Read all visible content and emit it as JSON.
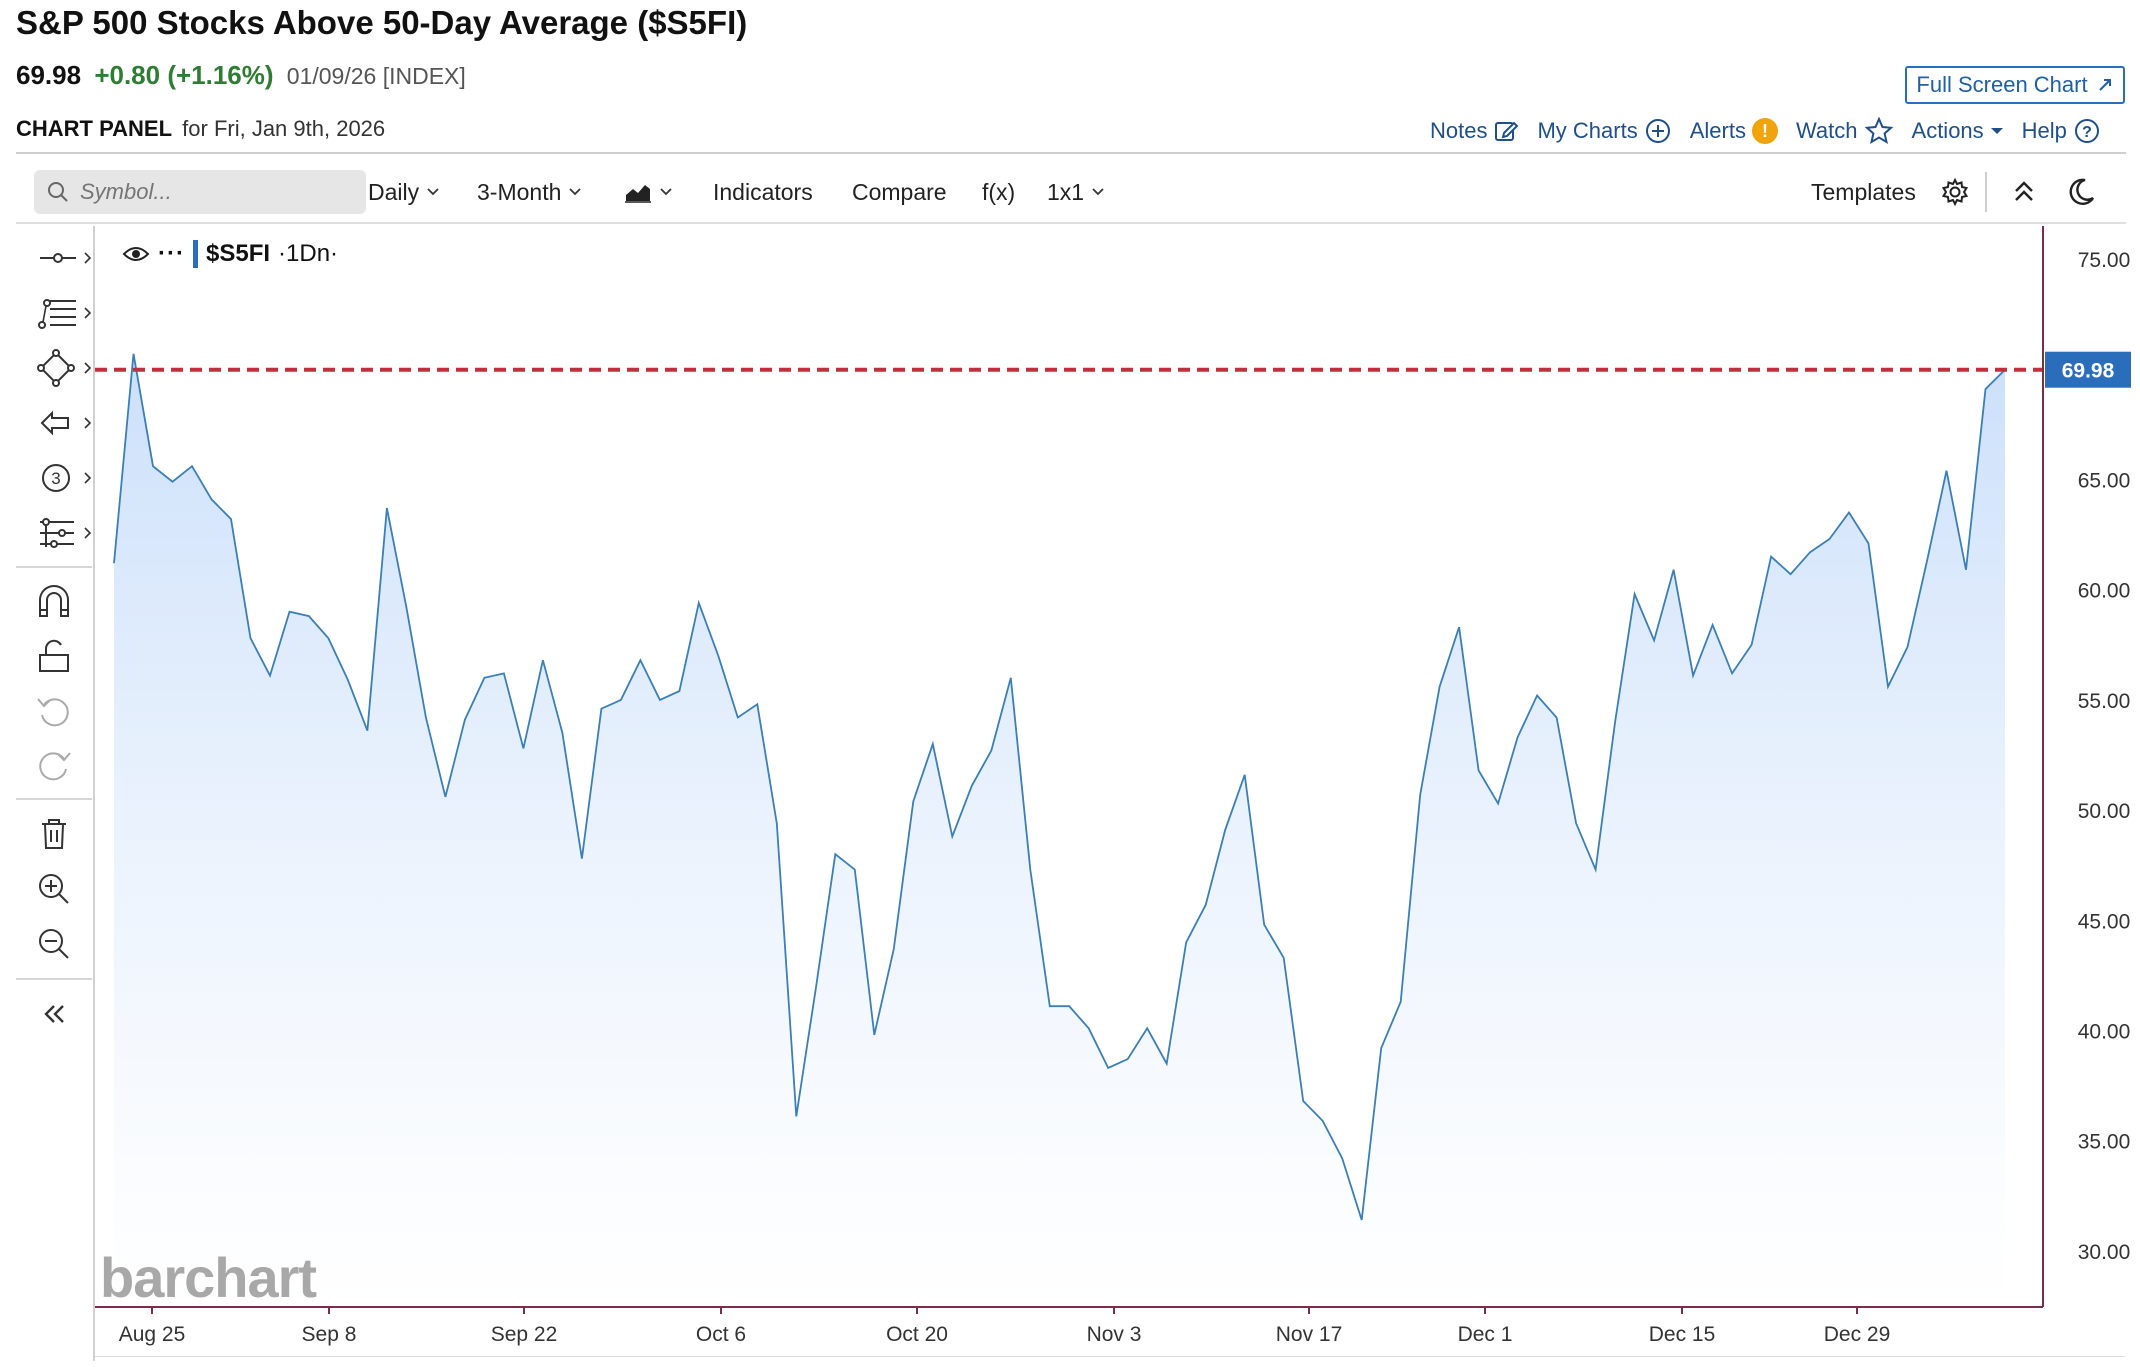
{
  "header": {
    "title": "S&P 500 Stocks Above 50-Day Average ($S5FI)",
    "last": "69.98",
    "change": "+0.80 (+1.16%)",
    "meta": "01/09/26 [INDEX]",
    "fullscreen_label": "Full Screen Chart",
    "panel_label": "CHART PANEL",
    "panel_date": "for Fri, Jan 9th, 2026"
  },
  "actions": {
    "notes": "Notes",
    "my_charts": "My Charts",
    "alerts": "Alerts",
    "watch": "Watch",
    "actions": "Actions",
    "help": "Help"
  },
  "toolbar": {
    "search_placeholder": "Symbol...",
    "interval": "Daily",
    "range": "3-Month",
    "indicators": "Indicators",
    "compare": "Compare",
    "fx": "f(x)",
    "layout": "1x1",
    "templates": "Templates"
  },
  "legend": {
    "symbol": "$S5FI",
    "interval": "·1Dn·"
  },
  "watermark": "barchart",
  "colors": {
    "line": "#3a7fb8",
    "fill_top": "#cfe2fb",
    "last_line": "#c0303c",
    "last_label_bg": "#2a6ebb",
    "axis": "#7b2d4f",
    "change_up": "#2e7d32"
  },
  "icons": [
    "search-icon",
    "chevron-down-icon",
    "area-chart-icon",
    "gear-icon",
    "collapse-up-icon",
    "moon-icon",
    "eye-icon",
    "more-icon",
    "pencil-square-icon",
    "plus-circle-icon",
    "alert-icon",
    "star-icon",
    "help-icon",
    "expand-icon",
    "line-tool-icon",
    "fib-tool-icon",
    "shape-tool-icon",
    "arrow-tool-icon",
    "count-tool-icon",
    "pattern-tool-icon",
    "magnet-icon",
    "lock-icon",
    "undo-icon",
    "redo-icon",
    "trash-icon",
    "zoom-in-icon",
    "zoom-out-icon",
    "double-chevron-left-icon"
  ],
  "chart_data": {
    "type": "area",
    "ylim": [
      27.5,
      76.5
    ],
    "yticks": [
      "75.00",
      "65.00",
      "60.00",
      "55.00",
      "50.00",
      "45.00",
      "40.00",
      "35.00",
      "30.00"
    ],
    "xtick_labels": [
      "Aug 25",
      "Sep 8",
      "Sep 22",
      "Oct 6",
      "Oct 20",
      "Nov 3",
      "Nov 17",
      "Dec 1",
      "Dec 15",
      "Dec 29"
    ],
    "last_value": "69.98",
    "values": [
      61.2,
      70.7,
      65.6,
      64.9,
      65.6,
      64.1,
      63.2,
      57.8,
      56.1,
      59.0,
      58.8,
      57.8,
      55.9,
      53.6,
      63.7,
      59.2,
      54.2,
      50.6,
      54.1,
      56.0,
      56.2,
      52.8,
      56.8,
      53.5,
      47.8,
      54.6,
      55.0,
      56.8,
      55.0,
      55.4,
      59.4,
      57.0,
      54.2,
      54.8,
      49.4,
      36.1,
      41.9,
      48.0,
      47.3,
      39.8,
      43.7,
      50.4,
      53.0,
      48.8,
      51.1,
      52.7,
      56.0,
      47.3,
      41.1,
      41.1,
      40.1,
      38.3,
      38.7,
      40.1,
      38.5,
      44.0,
      45.7,
      49.1,
      51.6,
      44.8,
      43.3,
      36.8,
      35.9,
      34.2,
      31.4,
      39.2,
      41.3,
      50.7,
      55.6,
      58.3,
      51.8,
      50.3,
      53.3,
      55.2,
      54.2,
      49.4,
      47.3,
      54.0,
      59.8,
      57.7,
      60.9,
      56.1,
      58.4,
      56.2,
      57.5,
      61.5,
      60.7,
      61.7,
      62.3,
      63.5,
      62.1,
      55.6,
      57.4,
      61.3,
      65.4,
      60.9,
      69.1,
      69.98
    ]
  }
}
